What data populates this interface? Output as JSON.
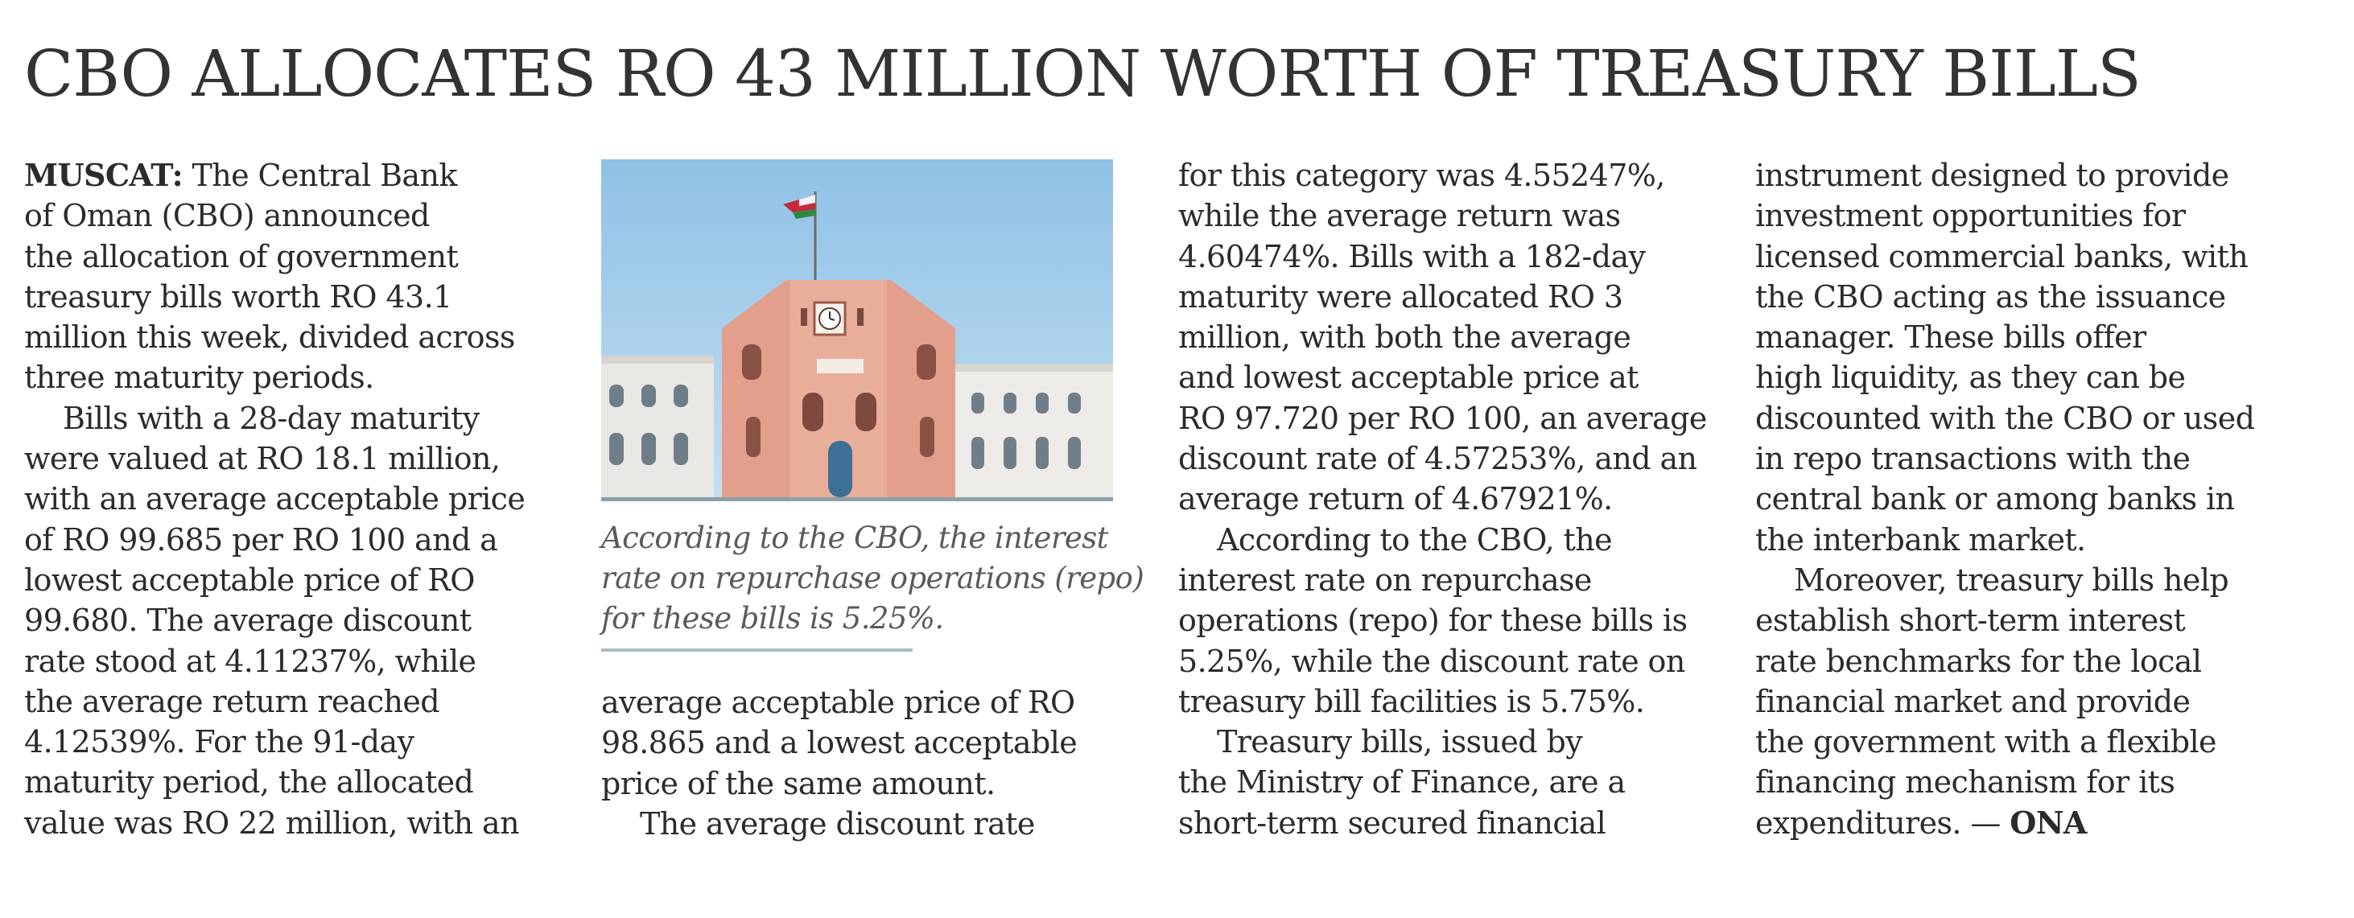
{
  "headline": "CBO ALLOCATES RO 43 MILLION WORTH OF TREASURY BILLS",
  "dateline": "MUSCAT:",
  "credit": "ONA",
  "columns": {
    "col1": [
      " The Central Bank",
      "of Oman (CBO) announced",
      "the allocation of government",
      "treasury bills worth RO 43.1",
      "million this week, divided across",
      "three maturity periods.",
      "Bills with a 28-day maturity",
      "were valued at RO 18.1 million,",
      "with an average acceptable price",
      "of RO 99.685 per RO 100 and a",
      "lowest acceptable price of RO",
      "99.680. The average discount",
      "rate stood at 4.11237%, while",
      "the average return reached",
      "4.12539%. For the 91-day",
      "maturity period, the allocated",
      "value was RO 22 million, with an"
    ],
    "col2": [
      "average acceptable price of RO",
      "98.865 and a lowest acceptable",
      "price of the same amount.",
      "The average discount rate"
    ],
    "col3": [
      "for this category was 4.55247%,",
      "while the average return was",
      "4.60474%.  Bills with a 182-day",
      "maturity were allocated RO 3",
      "million, with both the average",
      "and lowest acceptable price at",
      "RO 97.720 per RO 100, an average",
      "discount rate of 4.57253%, and an",
      "average return of 4.67921%.",
      "According to the CBO, the",
      "interest rate on repurchase",
      "operations (repo) for these bills is",
      "5.25%, while the discount rate on",
      "treasury bill facilities is 5.75%.",
      "Treasury bills, issued by",
      "the Ministry of Finance, are a",
      "short-term secured financial"
    ],
    "col4": [
      "instrument designed to provide",
      "investment opportunities for",
      "licensed commercial banks, with",
      "the CBO acting as the issuance",
      "manager. These bills offer",
      "high liquidity, as they can be",
      "discounted with the CBO or used",
      "in repo transactions with the",
      "central bank or among banks in",
      "the interbank market.",
      "Moreover, treasury bills help",
      "establish short-term interest",
      "rate benchmarks for the local",
      "financial market and provide",
      "the government with a flexible",
      "financing mechanism for its",
      "expenditures. — "
    ]
  },
  "caption": [
    "According to the CBO, the interest",
    "rate on repurchase operations (repo)",
    "for these bills is 5.25%."
  ],
  "photo": {
    "subject-icon": "central-bank-building-photo",
    "colors": {
      "sky": "#a9cfe9",
      "facade": "#e3a591",
      "wing": "#ecebea",
      "flag": "#c8283c"
    }
  }
}
